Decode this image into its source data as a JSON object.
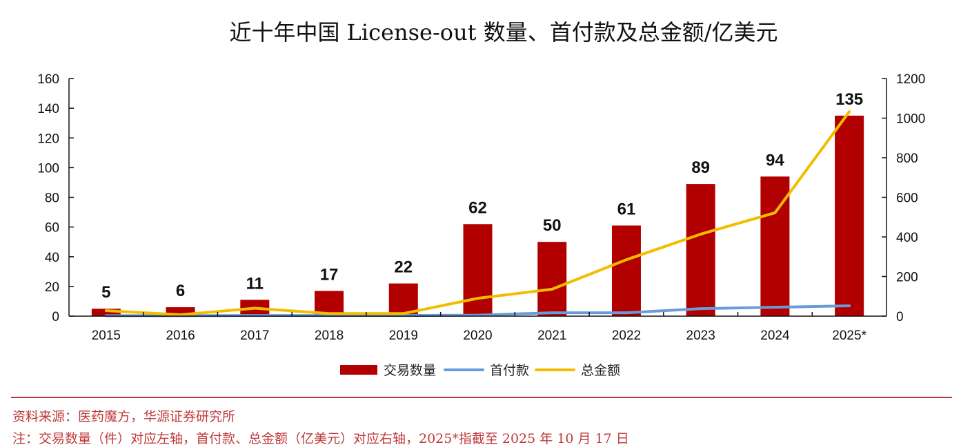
{
  "chart_data": {
    "type": "bar",
    "title": "近十年中国 License-out 数量、首付款及总金额/亿美元",
    "categories": [
      "2015",
      "2016",
      "2017",
      "2018",
      "2019",
      "2020",
      "2021",
      "2022",
      "2023",
      "2024",
      "2025*"
    ],
    "series": [
      {
        "name": "交易数量",
        "type": "bar",
        "axis": "left",
        "color": "#b20000",
        "values": [
          5,
          6,
          11,
          17,
          22,
          62,
          50,
          61,
          89,
          94,
          135
        ],
        "data_labels": [
          "5",
          "6",
          "11",
          "17",
          "22",
          "62",
          "50",
          "61",
          "89",
          "94",
          "135"
        ]
      },
      {
        "name": "首付款",
        "type": "line",
        "axis": "right",
        "color": "#6b9bd6",
        "values": [
          2,
          2,
          3,
          3,
          3,
          5,
          17,
          17,
          38,
          45,
          52
        ]
      },
      {
        "name": "总金额",
        "type": "line",
        "axis": "right",
        "color": "#f2bd00",
        "values": [
          28,
          7,
          40,
          13,
          13,
          90,
          136,
          285,
          414,
          522,
          1033
        ]
      }
    ],
    "left_axis": {
      "min": 0,
      "max": 160,
      "ticks": [
        "0",
        "20",
        "40",
        "60",
        "80",
        "100",
        "120",
        "140",
        "160"
      ]
    },
    "right_axis": {
      "min": 0,
      "max": 1200,
      "ticks": [
        "0",
        "200",
        "400",
        "600",
        "800",
        "1000",
        "1200"
      ]
    },
    "xlabel": "",
    "ylabel": "",
    "grid": false,
    "legend_position": "bottom-center"
  },
  "legend": [
    {
      "label": "交易数量",
      "kind": "bar",
      "color": "#b20000"
    },
    {
      "label": "首付款",
      "kind": "line",
      "color": "#6b9bd6"
    },
    {
      "label": "总金额",
      "kind": "line",
      "color": "#f2bd00"
    }
  ],
  "footer": {
    "source": "资料来源：医药魔方，华源证券研究所",
    "note": "注：交易数量（件）对应左轴，首付款、总金额（亿美元）对应右轴，2025*指截至 2025 年 10 月 17 日",
    "color": "#c0393b"
  }
}
